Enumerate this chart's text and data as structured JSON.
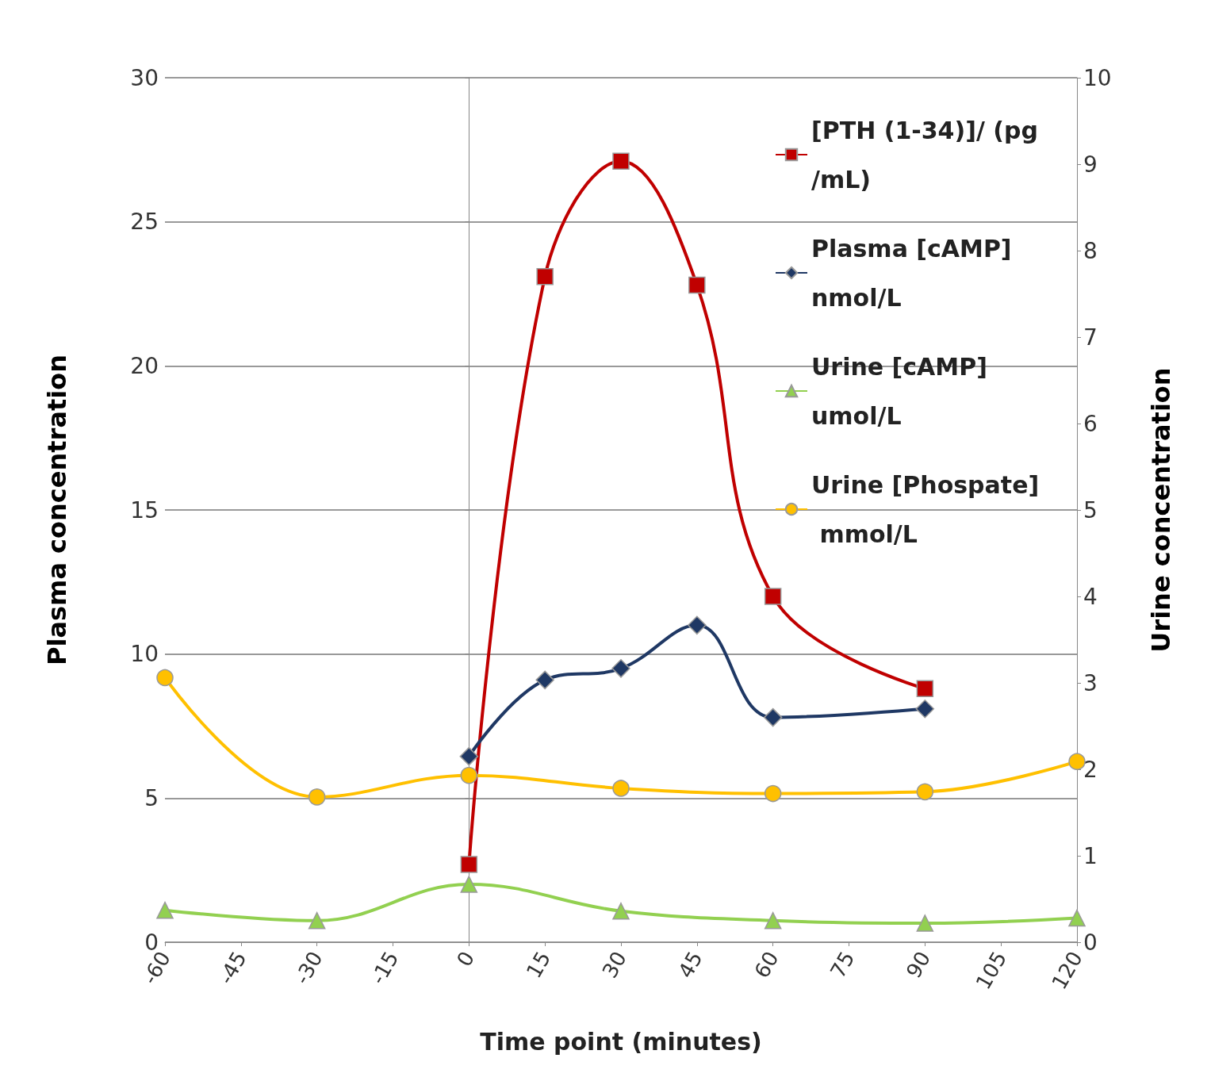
{
  "chart_data": {
    "type": "line",
    "xlabel": "Time point (minutes)",
    "ylabel": "Plasma concentration",
    "y2label": "Urine concentration",
    "xlim": [
      -60,
      120
    ],
    "xticks": [
      -60,
      -45,
      -30,
      -15,
      0,
      15,
      30,
      45,
      60,
      75,
      90,
      105,
      120
    ],
    "ylim": [
      0,
      30
    ],
    "yticks": [
      0,
      5,
      10,
      15,
      20,
      25,
      30
    ],
    "y2lim": [
      0,
      10
    ],
    "y2ticks": [
      0,
      1,
      2,
      3,
      4,
      5,
      6,
      7,
      8,
      9,
      10
    ],
    "grid": "y",
    "legend": "top right",
    "series": [
      {
        "name": "[PTH (1-34)]/ (pg/mL)",
        "color": "#c00000",
        "marker": "square",
        "x": [
          0,
          15,
          30,
          45,
          60,
          90
        ],
        "values": [
          2.7,
          23.1,
          27.1,
          22.8,
          12.0,
          8.8
        ]
      },
      {
        "name": "Plasma [cAMP] nmol/L",
        "color": "#1f3864",
        "marker": "diamond",
        "x": [
          0,
          15,
          30,
          45,
          60,
          90
        ],
        "values": [
          6.45,
          9.1,
          9.5,
          11.0,
          7.8,
          8.1
        ]
      },
      {
        "name": "Urine [cAMP] umol/L",
        "color": "#92d050",
        "marker": "triangle",
        "axis": "y2",
        "x": [
          -60,
          -30,
          0,
          30,
          60,
          90,
          120
        ],
        "values": [
          0.37,
          0.25,
          0.67,
          0.36,
          0.25,
          0.22,
          0.28
        ]
      },
      {
        "name": "Urine [Phospate] mmol/L",
        "color": "#ffc000",
        "marker": "circle",
        "axis": "y2",
        "x": [
          -60,
          -30,
          0,
          30,
          60,
          90,
          120
        ],
        "values": [
          3.06,
          1.68,
          1.93,
          1.78,
          1.72,
          1.74,
          2.09
        ]
      }
    ]
  }
}
